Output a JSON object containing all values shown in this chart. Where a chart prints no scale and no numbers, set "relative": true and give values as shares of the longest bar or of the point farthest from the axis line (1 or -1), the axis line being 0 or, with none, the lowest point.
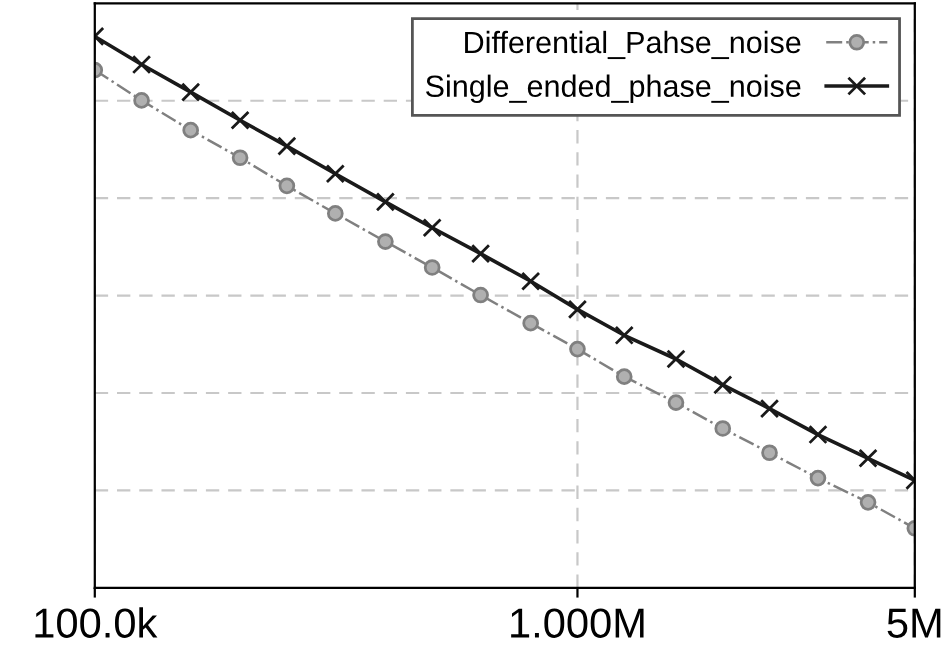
{
  "chart_data": {
    "type": "line",
    "relative": true,
    "log": "x",
    "xlim": [
      100000,
      5000000
    ],
    "xticks": [
      {
        "value": 100000,
        "label": "100.0k"
      },
      {
        "value": 1000000,
        "label": "1.000M"
      },
      {
        "value": 5000000,
        "label": "5M"
      }
    ],
    "x": [
      100000,
      125000,
      158000,
      200000,
      250000,
      315000,
      400000,
      500000,
      630000,
      800000,
      1000000,
      1250000,
      1600000,
      2000000,
      2500000,
      3150000,
      4000000,
      5000000
    ],
    "series": [
      {
        "name": "Differential_Pahse_noise",
        "color": "#808080",
        "marker": "circle",
        "line_style": "dashdot",
        "values": [
          0.939,
          0.884,
          0.83,
          0.78,
          0.729,
          0.679,
          0.628,
          0.581,
          0.531,
          0.48,
          0.433,
          0.383,
          0.336,
          0.289,
          0.245,
          0.199,
          0.155,
          0.108
        ]
      },
      {
        "name": "Single_ended_phase_noise",
        "color": "#1a1a1a",
        "marker": "cross",
        "line_style": "solid",
        "values": [
          1.0,
          0.949,
          0.899,
          0.848,
          0.801,
          0.751,
          0.7,
          0.653,
          0.606,
          0.556,
          0.505,
          0.458,
          0.415,
          0.368,
          0.325,
          0.278,
          0.235,
          0.195
        ]
      }
    ],
    "grid": true,
    "legend": "top right"
  }
}
